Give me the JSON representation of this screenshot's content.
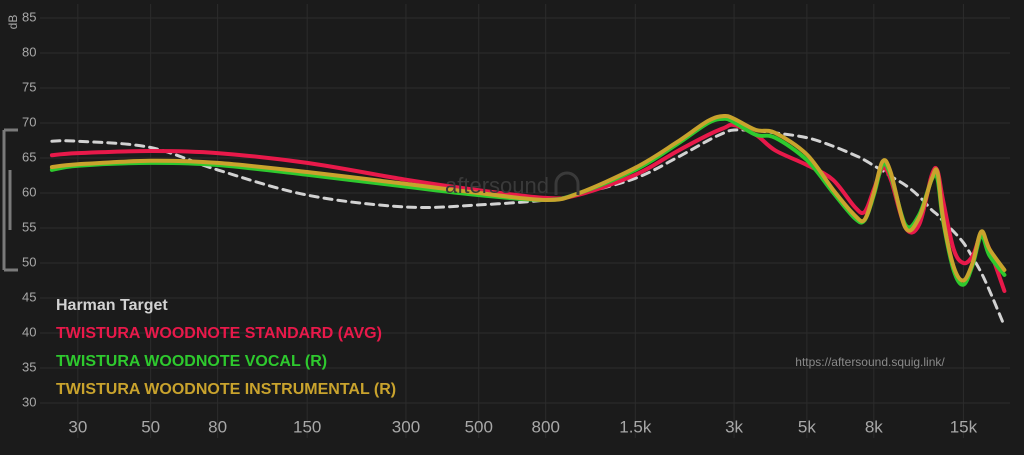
{
  "chart_data": {
    "type": "line",
    "y_label": "dB",
    "watermark": "aftersound",
    "source": "https://aftersound.squig.link/",
    "log_x": true,
    "grid": true,
    "legend": "bottom-left",
    "xlim": [
      23,
      20800
    ],
    "ylim": [
      25,
      87
    ],
    "yticks": [
      30,
      35,
      40,
      45,
      50,
      55,
      60,
      65,
      70,
      75,
      80,
      85
    ],
    "xticks": [
      30,
      50,
      80,
      150,
      300,
      500,
      800,
      {
        "value": 1500,
        "label": "1.5k"
      },
      {
        "value": 3000,
        "label": "3k"
      },
      {
        "value": 5000,
        "label": "5k"
      },
      {
        "value": 8000,
        "label": "8k"
      },
      {
        "value": 15000,
        "label": "15k"
      }
    ],
    "x": [
      25,
      30,
      50,
      80,
      150,
      300,
      500,
      800,
      1000,
      1500,
      2000,
      2500,
      2800,
      3000,
      3500,
      4000,
      5000,
      6000,
      7000,
      7500,
      8000,
      8500,
      9000,
      10000,
      11000,
      12000,
      12500,
      13000,
      14000,
      15000,
      16000,
      17000,
      18000,
      20000
    ],
    "series": [
      {
        "name": "Harman Target",
        "color": "#d2d2d2",
        "dashed": true,
        "values": [
          67.4,
          67.4,
          66.5,
          63.3,
          59.7,
          58,
          58.3,
          59,
          59.8,
          62.1,
          65,
          67.5,
          68.6,
          69,
          68.9,
          68.6,
          67.9,
          66.7,
          65.4,
          64.7,
          63.9,
          63.2,
          62.4,
          61.1,
          59.5,
          57.6,
          56.9,
          56,
          54.5,
          52.9,
          50.8,
          48.6,
          46.1,
          41
        ]
      },
      {
        "name": "TWISTURA WOODNOTE STANDARD (AVG)",
        "color": "#e8194a",
        "dashed": false,
        "values": [
          65.4,
          65.7,
          66,
          65.7,
          64.3,
          61.9,
          60.4,
          59.3,
          59.7,
          62.6,
          65.9,
          68.3,
          69.3,
          69.7,
          68.3,
          66.1,
          64,
          61.9,
          58,
          57.3,
          60.5,
          63.5,
          62,
          55,
          55.5,
          62.5,
          63.2,
          59,
          52,
          50,
          51,
          54,
          52,
          46
        ]
      },
      {
        "name": "TWISTURA WOODNOTE VOCAL (R)",
        "color": "#2ec92e",
        "dashed": false,
        "values": [
          63.3,
          63.9,
          64.3,
          64,
          62.6,
          60.9,
          59.7,
          59,
          59.9,
          63.3,
          66.9,
          70,
          70.6,
          70.1,
          68.3,
          67.9,
          64.7,
          60.1,
          56.4,
          56.1,
          59.7,
          64,
          62.6,
          55.4,
          56.9,
          61.9,
          62.1,
          56.1,
          49,
          46.9,
          49.7,
          53.9,
          51.1,
          48.3
        ]
      },
      {
        "name": "TWISTURA WOODNOTE INSTRUMENTAL (R)",
        "color": "#c9a32d",
        "dashed": false,
        "values": [
          63.7,
          64.1,
          64.6,
          64.3,
          63,
          61.3,
          60,
          59,
          59.9,
          63.6,
          67.2,
          70.3,
          71,
          70.6,
          69,
          68.6,
          65.5,
          60.5,
          56.8,
          56.2,
          60,
          64.5,
          63,
          55,
          56.5,
          62,
          63,
          56.5,
          49.5,
          47.5,
          50,
          54.5,
          52,
          49
        ]
      }
    ]
  }
}
